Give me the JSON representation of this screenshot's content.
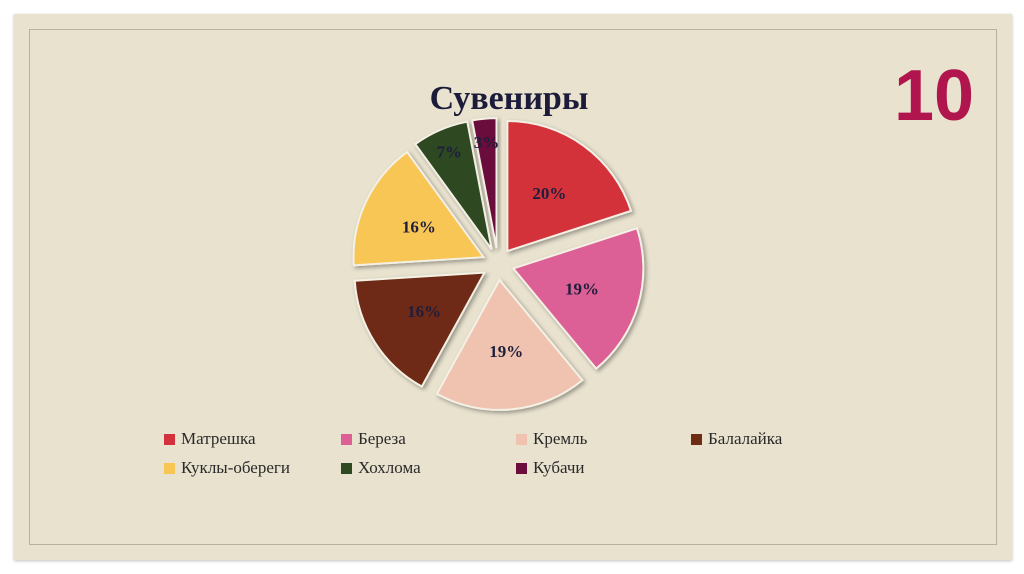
{
  "slide": {
    "number": "10"
  },
  "chart_data": {
    "type": "pie",
    "title": "Сувениры",
    "categories": [
      "Матрешка",
      "Береза",
      "Кремль",
      "Балалайка",
      "Куклы-обереги",
      "Хохлома",
      "Кубачи"
    ],
    "values": [
      20,
      19,
      19,
      16,
      16,
      7,
      3
    ],
    "labels": [
      "20%",
      "19%",
      "19%",
      "16%",
      "16%",
      "7%",
      "3%"
    ],
    "colors": [
      "#d3313b",
      "#dc5f96",
      "#f0c3b1",
      "#6e2c12",
      "#f8c655",
      "#2f4a22",
      "#6b0e3c"
    ],
    "exploded": true,
    "legend_position": "bottom"
  }
}
